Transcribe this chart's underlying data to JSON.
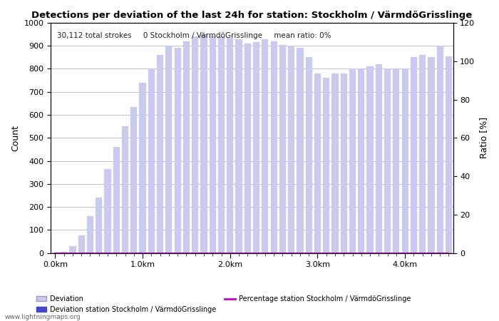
{
  "title": "Detections per deviation of the last 24h for station: Stockholm / VArmdO / Grisslinge",
  "annotation": "30,112 total strokes     0 Stockholm / VArmdO / Grisslinge     mean ratio: 0%",
  "ylabel_left": "Count",
  "ylabel_right": "Ratio [%]",
  "ylim_left": [
    0,
    1000
  ],
  "ylim_right": [
    0,
    120
  ],
  "bar_color_all": "#c8caee",
  "bar_color_station": "#4444cc",
  "line_color": "#cc00cc",
  "watermark": "www.lightningmaps.org",
  "legend_label_all": "Deviation",
  "legend_label_station": "Deviation station Stockholm / VArmdO / Grisslinge",
  "legend_label_pct": "Percentage station Stockholm / VArmdO / Grisslinge",
  "xtick_labels": [
    "0.0km",
    "1.0km",
    "2.0km",
    "3.0km",
    "4.0km"
  ],
  "xtick_positions": [
    0,
    10,
    20,
    30,
    40
  ],
  "bar_values": [
    2,
    5,
    30,
    75,
    160,
    240,
    365,
    460,
    550,
    635,
    740,
    800,
    860,
    900,
    890,
    920,
    940,
    950,
    940,
    940,
    935,
    930,
    910,
    915,
    930,
    920,
    905,
    900,
    890,
    850,
    780,
    760,
    780,
    780,
    800,
    800,
    810,
    820,
    800,
    800,
    800,
    850,
    860,
    850,
    900,
    855
  ],
  "n_bars": 46,
  "bar_width": 0.75,
  "station_bar_values": [
    0,
    0,
    0,
    0,
    0,
    0,
    0,
    0,
    0,
    0,
    0,
    0,
    0,
    0,
    0,
    0,
    0,
    0,
    0,
    0,
    0,
    0,
    0,
    0,
    0,
    0,
    0,
    0,
    0,
    0,
    0,
    0,
    0,
    0,
    0,
    0,
    0,
    0,
    0,
    0,
    0,
    0,
    0,
    0,
    0,
    0
  ],
  "percentage_values": [
    0,
    0,
    0,
    0,
    0,
    0,
    0,
    0,
    0,
    0,
    0,
    0,
    0,
    0,
    0,
    0,
    0,
    0,
    0,
    0,
    0,
    0,
    0,
    0,
    0,
    0,
    0,
    0,
    0,
    0,
    0,
    0,
    0,
    0,
    0,
    0,
    0,
    0,
    0,
    0,
    0,
    0,
    0,
    0,
    0,
    0
  ]
}
